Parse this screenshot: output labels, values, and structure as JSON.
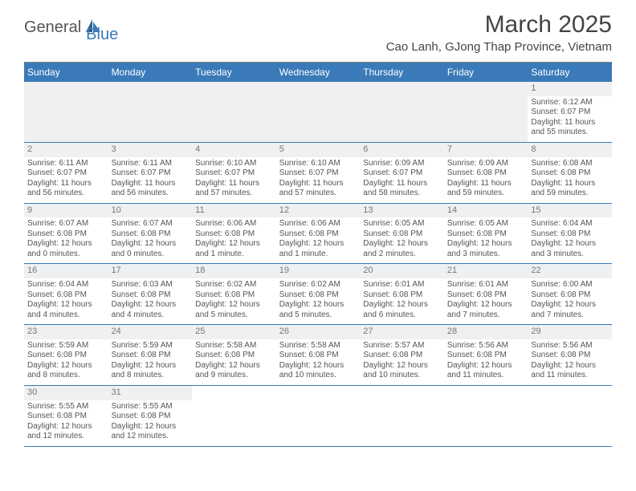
{
  "brand": {
    "name1": "General",
    "name2": "Blue"
  },
  "title": "March 2025",
  "location": "Cao Lanh, GJong Thap Province, Vietnam",
  "colors": {
    "header_bg": "#3a7ab8",
    "header_text": "#ffffff",
    "border": "#3a7ab8",
    "daynum_bg": "#eef0f2",
    "text": "#555555"
  },
  "day_labels": [
    "Sunday",
    "Monday",
    "Tuesday",
    "Wednesday",
    "Thursday",
    "Friday",
    "Saturday"
  ],
  "weeks": [
    [
      null,
      null,
      null,
      null,
      null,
      null,
      {
        "n": "1",
        "sr": "Sunrise: 6:12 AM",
        "ss": "Sunset: 6:07 PM",
        "dl": "Daylight: 11 hours and 55 minutes."
      }
    ],
    [
      {
        "n": "2",
        "sr": "Sunrise: 6:11 AM",
        "ss": "Sunset: 6:07 PM",
        "dl": "Daylight: 11 hours and 56 minutes."
      },
      {
        "n": "3",
        "sr": "Sunrise: 6:11 AM",
        "ss": "Sunset: 6:07 PM",
        "dl": "Daylight: 11 hours and 56 minutes."
      },
      {
        "n": "4",
        "sr": "Sunrise: 6:10 AM",
        "ss": "Sunset: 6:07 PM",
        "dl": "Daylight: 11 hours and 57 minutes."
      },
      {
        "n": "5",
        "sr": "Sunrise: 6:10 AM",
        "ss": "Sunset: 6:07 PM",
        "dl": "Daylight: 11 hours and 57 minutes."
      },
      {
        "n": "6",
        "sr": "Sunrise: 6:09 AM",
        "ss": "Sunset: 6:07 PM",
        "dl": "Daylight: 11 hours and 58 minutes."
      },
      {
        "n": "7",
        "sr": "Sunrise: 6:09 AM",
        "ss": "Sunset: 6:08 PM",
        "dl": "Daylight: 11 hours and 59 minutes."
      },
      {
        "n": "8",
        "sr": "Sunrise: 6:08 AM",
        "ss": "Sunset: 6:08 PM",
        "dl": "Daylight: 11 hours and 59 minutes."
      }
    ],
    [
      {
        "n": "9",
        "sr": "Sunrise: 6:07 AM",
        "ss": "Sunset: 6:08 PM",
        "dl": "Daylight: 12 hours and 0 minutes."
      },
      {
        "n": "10",
        "sr": "Sunrise: 6:07 AM",
        "ss": "Sunset: 6:08 PM",
        "dl": "Daylight: 12 hours and 0 minutes."
      },
      {
        "n": "11",
        "sr": "Sunrise: 6:06 AM",
        "ss": "Sunset: 6:08 PM",
        "dl": "Daylight: 12 hours and 1 minute."
      },
      {
        "n": "12",
        "sr": "Sunrise: 6:06 AM",
        "ss": "Sunset: 6:08 PM",
        "dl": "Daylight: 12 hours and 1 minute."
      },
      {
        "n": "13",
        "sr": "Sunrise: 6:05 AM",
        "ss": "Sunset: 6:08 PM",
        "dl": "Daylight: 12 hours and 2 minutes."
      },
      {
        "n": "14",
        "sr": "Sunrise: 6:05 AM",
        "ss": "Sunset: 6:08 PM",
        "dl": "Daylight: 12 hours and 3 minutes."
      },
      {
        "n": "15",
        "sr": "Sunrise: 6:04 AM",
        "ss": "Sunset: 6:08 PM",
        "dl": "Daylight: 12 hours and 3 minutes."
      }
    ],
    [
      {
        "n": "16",
        "sr": "Sunrise: 6:04 AM",
        "ss": "Sunset: 6:08 PM",
        "dl": "Daylight: 12 hours and 4 minutes."
      },
      {
        "n": "17",
        "sr": "Sunrise: 6:03 AM",
        "ss": "Sunset: 6:08 PM",
        "dl": "Daylight: 12 hours and 4 minutes."
      },
      {
        "n": "18",
        "sr": "Sunrise: 6:02 AM",
        "ss": "Sunset: 6:08 PM",
        "dl": "Daylight: 12 hours and 5 minutes."
      },
      {
        "n": "19",
        "sr": "Sunrise: 6:02 AM",
        "ss": "Sunset: 6:08 PM",
        "dl": "Daylight: 12 hours and 5 minutes."
      },
      {
        "n": "20",
        "sr": "Sunrise: 6:01 AM",
        "ss": "Sunset: 6:08 PM",
        "dl": "Daylight: 12 hours and 6 minutes."
      },
      {
        "n": "21",
        "sr": "Sunrise: 6:01 AM",
        "ss": "Sunset: 6:08 PM",
        "dl": "Daylight: 12 hours and 7 minutes."
      },
      {
        "n": "22",
        "sr": "Sunrise: 6:00 AM",
        "ss": "Sunset: 6:08 PM",
        "dl": "Daylight: 12 hours and 7 minutes."
      }
    ],
    [
      {
        "n": "23",
        "sr": "Sunrise: 5:59 AM",
        "ss": "Sunset: 6:08 PM",
        "dl": "Daylight: 12 hours and 8 minutes."
      },
      {
        "n": "24",
        "sr": "Sunrise: 5:59 AM",
        "ss": "Sunset: 6:08 PM",
        "dl": "Daylight: 12 hours and 8 minutes."
      },
      {
        "n": "25",
        "sr": "Sunrise: 5:58 AM",
        "ss": "Sunset: 6:08 PM",
        "dl": "Daylight: 12 hours and 9 minutes."
      },
      {
        "n": "26",
        "sr": "Sunrise: 5:58 AM",
        "ss": "Sunset: 6:08 PM",
        "dl": "Daylight: 12 hours and 10 minutes."
      },
      {
        "n": "27",
        "sr": "Sunrise: 5:57 AM",
        "ss": "Sunset: 6:08 PM",
        "dl": "Daylight: 12 hours and 10 minutes."
      },
      {
        "n": "28",
        "sr": "Sunrise: 5:56 AM",
        "ss": "Sunset: 6:08 PM",
        "dl": "Daylight: 12 hours and 11 minutes."
      },
      {
        "n": "29",
        "sr": "Sunrise: 5:56 AM",
        "ss": "Sunset: 6:08 PM",
        "dl": "Daylight: 12 hours and 11 minutes."
      }
    ],
    [
      {
        "n": "30",
        "sr": "Sunrise: 5:55 AM",
        "ss": "Sunset: 6:08 PM",
        "dl": "Daylight: 12 hours and 12 minutes."
      },
      {
        "n": "31",
        "sr": "Sunrise: 5:55 AM",
        "ss": "Sunset: 6:08 PM",
        "dl": "Daylight: 12 hours and 12 minutes."
      },
      null,
      null,
      null,
      null,
      null
    ]
  ]
}
